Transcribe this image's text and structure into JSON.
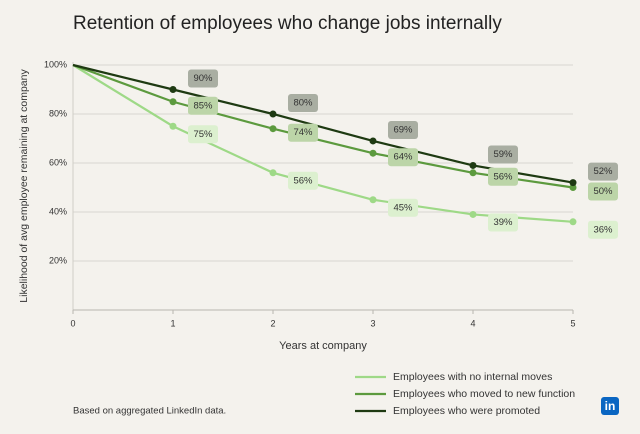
{
  "chart_data": {
    "type": "line",
    "title": "Retention of employees who change jobs internally",
    "x_label": "Years at company",
    "y_label": "Likelihood of avg employee remaining at company",
    "note": "Based on aggregated LinkedIn data.",
    "logo": "in",
    "x": [
      0,
      1,
      2,
      3,
      4,
      5
    ],
    "xlim": [
      0,
      5
    ],
    "xticks": [
      0,
      1,
      2,
      3,
      4,
      5
    ],
    "ylim": [
      0,
      100
    ],
    "yticks": [
      {
        "value": 20,
        "label": "20%"
      },
      {
        "value": 40,
        "label": "40%"
      },
      {
        "value": 60,
        "label": "60%"
      },
      {
        "value": 80,
        "label": "80%"
      },
      {
        "value": 100,
        "label": "100%"
      }
    ],
    "grid": true,
    "series": [
      {
        "name": "Employees with no internal moves",
        "color": "#9ed987",
        "label_color": "#dcf0cf",
        "values": [
          100,
          75,
          56,
          45,
          39,
          36
        ],
        "value_labels": [
          null,
          "75%",
          "56%",
          "45%",
          "39%",
          "36%"
        ]
      },
      {
        "name": "Employees who moved to new function",
        "color": "#5c9a3e",
        "label_color": "#bcd5a8",
        "values": [
          100,
          85,
          74,
          64,
          56,
          50
        ],
        "value_labels": [
          null,
          "85%",
          "74%",
          "64%",
          "56%",
          "50%"
        ]
      },
      {
        "name": "Employees who were promoted",
        "color": "#1e3a12",
        "label_color": "#a9aea2",
        "values": [
          100,
          90,
          80,
          69,
          59,
          52
        ],
        "value_labels": [
          null,
          "90%",
          "80%",
          "69%",
          "59%",
          "52%"
        ]
      }
    ]
  }
}
